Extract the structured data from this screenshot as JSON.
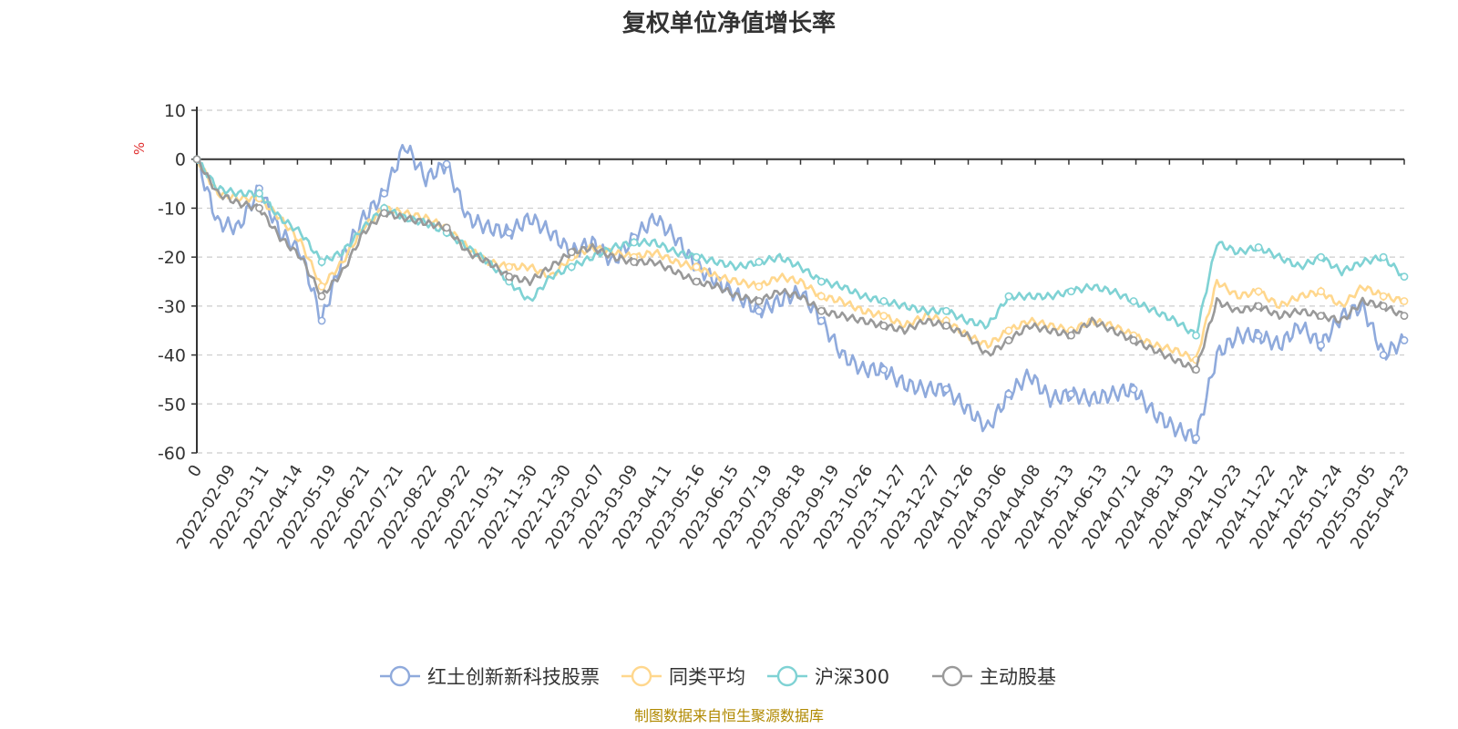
{
  "chart_data": {
    "type": "line",
    "title": "复权单位净值增长率",
    "ylabel": "%",
    "ylim": [
      -60,
      10
    ],
    "yticks": [
      10,
      0,
      -10,
      -20,
      -30,
      -40,
      -50,
      -60
    ],
    "grid": "horizontal-dashed",
    "legend_position": "bottom",
    "x_tick_labels": [
      "0",
      "2022-02-09",
      "2022-03-11",
      "2022-04-14",
      "2022-05-19",
      "2022-06-21",
      "2022-07-21",
      "2022-08-22",
      "2022-09-22",
      "2022-10-31",
      "2022-11-30",
      "2022-12-30",
      "2023-02-07",
      "2023-03-09",
      "2023-04-11",
      "2023-05-16",
      "2023-06-15",
      "2023-07-19",
      "2023-08-18",
      "2023-09-19",
      "2023-10-26",
      "2023-11-27",
      "2023-12-27",
      "2024-01-26",
      "2024-03-06",
      "2024-04-08",
      "2024-05-13",
      "2024-06-13",
      "2024-07-12",
      "2024-08-13",
      "2024-09-12",
      "2024-10-23",
      "2024-11-22",
      "2024-12-24",
      "2025-01-24",
      "2025-03-05",
      "2025-04-23"
    ],
    "series": [
      {
        "name": "红土创新新科技股票",
        "color": "#8faadc",
        "values": [
          0,
          -13,
          -14,
          -6,
          -15,
          -19,
          -33,
          -20,
          -12,
          -7,
          3,
          -4,
          -1,
          -12,
          -14,
          -15,
          -12,
          -15,
          -19,
          -17,
          -21,
          -16,
          -12,
          -16,
          -22,
          -25,
          -28,
          -31,
          -29,
          -27,
          -33,
          -40,
          -43,
          -43,
          -46,
          -47,
          -47,
          -51,
          -55,
          -48,
          -44,
          -49,
          -48,
          -49,
          -48,
          -47,
          -52,
          -55,
          -57,
          -40,
          -36,
          -36,
          -38,
          -34,
          -38,
          -32,
          -30,
          -40,
          -37
        ]
      },
      {
        "name": "同类平均",
        "color": "#ffd78d",
        "values": [
          0,
          -7,
          -8,
          -8,
          -12,
          -17,
          -26,
          -21,
          -14,
          -10,
          -11,
          -12,
          -14,
          -18,
          -21,
          -22,
          -22,
          -24,
          -20,
          -18,
          -19,
          -20,
          -19,
          -21,
          -22,
          -24,
          -25,
          -26,
          -24,
          -25,
          -28,
          -29,
          -31,
          -32,
          -34,
          -32,
          -33,
          -36,
          -38,
          -35,
          -33,
          -34,
          -35,
          -33,
          -34,
          -36,
          -38,
          -39,
          -41,
          -25,
          -28,
          -27,
          -30,
          -28,
          -27,
          -30,
          -26,
          -28,
          -29
        ]
      },
      {
        "name": "沪深300",
        "color": "#7fd2d4",
        "values": [
          0,
          -6,
          -7,
          -7,
          -12,
          -15,
          -21,
          -19,
          -14,
          -10,
          -12,
          -13,
          -15,
          -18,
          -21,
          -25,
          -29,
          -24,
          -22,
          -20,
          -18,
          -17,
          -17,
          -19,
          -20,
          -21,
          -22,
          -21,
          -20,
          -22,
          -25,
          -26,
          -28,
          -29,
          -30,
          -31,
          -31,
          -33,
          -34,
          -28,
          -28,
          -28,
          -27,
          -26,
          -27,
          -29,
          -31,
          -33,
          -36,
          -17,
          -19,
          -18,
          -20,
          -22,
          -20,
          -23,
          -21,
          -20,
          -24
        ]
      },
      {
        "name": "主动股基",
        "color": "#999999",
        "values": [
          0,
          -7,
          -9,
          -10,
          -16,
          -20,
          -28,
          -23,
          -15,
          -11,
          -12,
          -13,
          -14,
          -19,
          -21,
          -24,
          -25,
          -22,
          -19,
          -18,
          -20,
          -21,
          -21,
          -23,
          -25,
          -26,
          -28,
          -29,
          -27,
          -28,
          -31,
          -32,
          -33,
          -34,
          -35,
          -33,
          -34,
          -36,
          -40,
          -37,
          -34,
          -35,
          -36,
          -33,
          -35,
          -37,
          -39,
          -41,
          -43,
          -29,
          -31,
          -30,
          -32,
          -31,
          -32,
          -33,
          -29,
          -30,
          -32
        ]
      }
    ]
  },
  "legend": {
    "items": [
      {
        "label": "红土创新新科技股票",
        "color": "#8faadc"
      },
      {
        "label": "同类平均",
        "color": "#ffd78d"
      },
      {
        "label": "沪深300",
        "color": "#7fd2d4"
      },
      {
        "label": "主动股基",
        "color": "#999999"
      }
    ]
  },
  "source": {
    "text": "制图数据来自恒生聚源数据库",
    "color": "#b08900"
  },
  "colors": {
    "unit": "#e03030",
    "axis": "#333333",
    "grid": "#cccccc"
  }
}
